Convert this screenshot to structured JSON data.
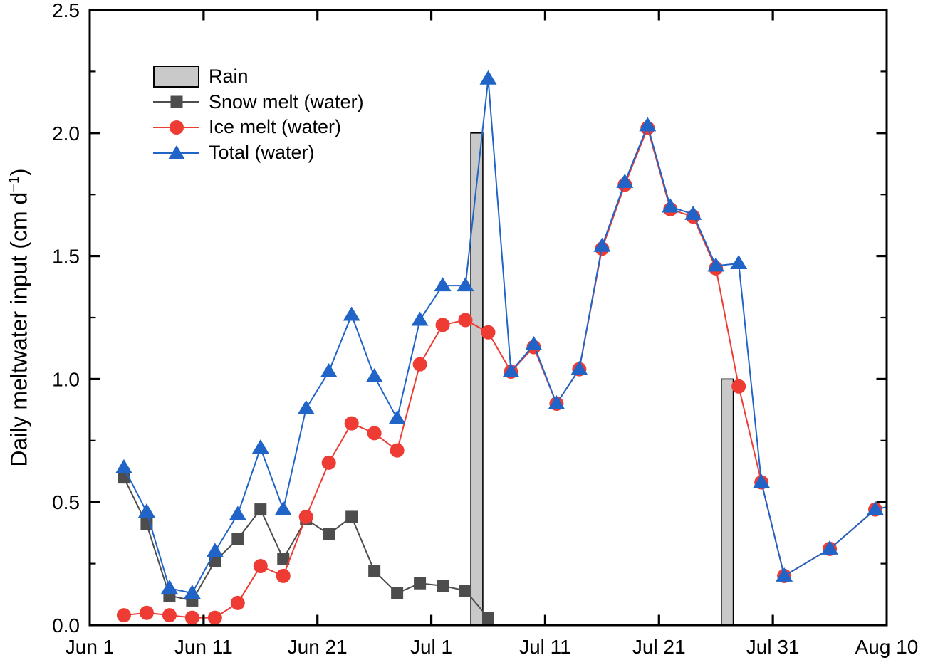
{
  "axes": {
    "y_title_prefix": "Daily meltwater input (cm d",
    "y_title_sup": "−1",
    "y_title_suffix": ")"
  },
  "chart_data": {
    "type": "line",
    "title": "",
    "xlabel": "",
    "ylabel": "Daily meltwater input (cm d-1)",
    "legend_position": "upper-left",
    "grid": false,
    "ylim": [
      0,
      2.5
    ],
    "x_range": [
      "Jun 1",
      "Aug 10"
    ],
    "x_tick_days": [
      0,
      10,
      20,
      30,
      40,
      50,
      60,
      70
    ],
    "x_tick_labels": [
      "Jun 1",
      "Jun 11",
      "Jun 21",
      "Jul 1",
      "Jul 11",
      "Jul 21",
      "Jul 31",
      "Aug 10"
    ],
    "y_ticks": [
      0,
      0.5,
      1,
      1.5,
      2,
      2.5
    ],
    "y_tick_labels": [
      "0.0",
      "0.5",
      "1.0",
      "1.5",
      "2.0",
      "2.5"
    ],
    "y_minor_ticks": [
      0.25,
      0.75,
      1.25,
      1.75,
      2.25
    ],
    "axis_color": "#000000",
    "rain_bars": {
      "name": "Rain",
      "color": "#C9C9C9",
      "border": "#000000",
      "width_days": 1.05,
      "points": [
        [
          "Jul 5",
          2.0
        ],
        [
          "Jul 27",
          1.0
        ]
      ]
    },
    "series": [
      {
        "name": "Snow melt (water)",
        "marker": "square",
        "color": "#4D4D4D",
        "points": [
          [
            "Jun 4",
            0.6
          ],
          [
            "Jun 6",
            0.41
          ],
          [
            "Jun 8",
            0.12
          ],
          [
            "Jun 10",
            0.1
          ],
          [
            "Jun 12",
            0.26
          ],
          [
            "Jun 14",
            0.35
          ],
          [
            "Jun 16",
            0.47
          ],
          [
            "Jun 18",
            0.27
          ],
          [
            "Jun 20",
            0.43
          ],
          [
            "Jun 22",
            0.37
          ],
          [
            "Jun 24",
            0.44
          ],
          [
            "Jun 26",
            0.22
          ],
          [
            "Jun 28",
            0.13
          ],
          [
            "Jun 30",
            0.17
          ],
          [
            "Jul 2",
            0.16
          ],
          [
            "Jul 4",
            0.14
          ],
          [
            "Jul 6",
            0.03
          ]
        ]
      },
      {
        "name": "Ice melt (water)",
        "marker": "circle",
        "color": "#EE3B33",
        "points": [
          [
            "Jun 4",
            0.04
          ],
          [
            "Jun 6",
            0.05
          ],
          [
            "Jun 8",
            0.04
          ],
          [
            "Jun 10",
            0.03
          ],
          [
            "Jun 12",
            0.03
          ],
          [
            "Jun 14",
            0.09
          ],
          [
            "Jun 16",
            0.24
          ],
          [
            "Jun 18",
            0.2
          ],
          [
            "Jun 20",
            0.44
          ],
          [
            "Jun 22",
            0.66
          ],
          [
            "Jun 24",
            0.82
          ],
          [
            "Jun 26",
            0.78
          ],
          [
            "Jun 28",
            0.71
          ],
          [
            "Jun 30",
            1.06
          ],
          [
            "Jul 2",
            1.22
          ],
          [
            "Jul 4",
            1.24
          ],
          [
            "Jul 6",
            1.19
          ],
          [
            "Jul 8",
            1.03
          ],
          [
            "Jul 10",
            1.13
          ],
          [
            "Jul 12",
            0.9
          ],
          [
            "Jul 14",
            1.04
          ],
          [
            "Jul 16",
            1.53
          ],
          [
            "Jul 18",
            1.79
          ],
          [
            "Jul 20",
            2.02
          ],
          [
            "Jul 22",
            1.69
          ],
          [
            "Jul 24",
            1.66
          ],
          [
            "Jul 26",
            1.45
          ],
          [
            "Jul 28",
            0.97
          ],
          [
            "Jul 30",
            0.58
          ],
          [
            "Aug 1",
            0.2
          ],
          [
            "Aug 5",
            0.31
          ],
          [
            "Aug 9",
            0.47
          ]
        ],
        "line_extend": [
          "Aug 10",
          0.48
        ]
      },
      {
        "name": "Total (water)",
        "marker": "triangle",
        "color": "#2064C8",
        "points": [
          [
            "Jun 4",
            0.64
          ],
          [
            "Jun 6",
            0.46
          ],
          [
            "Jun 8",
            0.15
          ],
          [
            "Jun 10",
            0.13
          ],
          [
            "Jun 12",
            0.3
          ],
          [
            "Jun 14",
            0.45
          ],
          [
            "Jun 16",
            0.72
          ],
          [
            "Jun 18",
            0.47
          ],
          [
            "Jun 20",
            0.88
          ],
          [
            "Jun 22",
            1.03
          ],
          [
            "Jun 24",
            1.26
          ],
          [
            "Jun 26",
            1.01
          ],
          [
            "Jun 28",
            0.84
          ],
          [
            "Jun 30",
            1.24
          ],
          [
            "Jul 2",
            1.38
          ],
          [
            "Jul 4",
            1.38
          ],
          [
            "Jul 6",
            2.22
          ],
          [
            "Jul 8",
            1.03
          ],
          [
            "Jul 10",
            1.14
          ],
          [
            "Jul 12",
            0.9
          ],
          [
            "Jul 14",
            1.04
          ],
          [
            "Jul 16",
            1.54
          ],
          [
            "Jul 18",
            1.8
          ],
          [
            "Jul 20",
            2.03
          ],
          [
            "Jul 22",
            1.7
          ],
          [
            "Jul 24",
            1.67
          ],
          [
            "Jul 26",
            1.46
          ],
          [
            "Jul 28",
            1.47
          ],
          [
            "Jul 30",
            0.58
          ],
          [
            "Aug 1",
            0.2
          ],
          [
            "Aug 5",
            0.31
          ],
          [
            "Aug 9",
            0.47
          ]
        ],
        "line_extend": [
          "Aug 10",
          0.48
        ]
      }
    ]
  }
}
